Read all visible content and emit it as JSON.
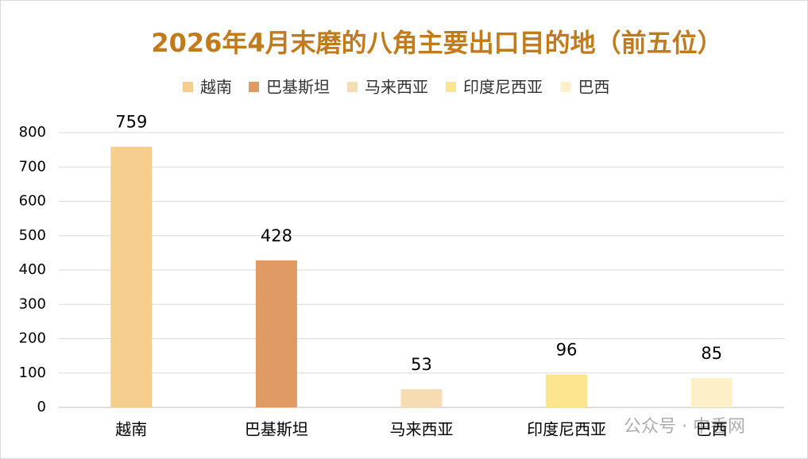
{
  "chart_data": {
    "type": "bar",
    "title": "2026年4月末磨的八角主要出口目的地（前五位）",
    "categories": [
      "越南",
      "巴基斯坦",
      "马来西亚",
      "印度尼西亚",
      "巴西"
    ],
    "values": [
      759,
      428,
      53,
      96,
      85
    ],
    "colors": [
      "#f5cd8d",
      "#e09a64",
      "#f5dcb3",
      "#fde48f",
      "#fdefc8"
    ],
    "ylim": [
      0,
      800
    ],
    "yticks": [
      0,
      100,
      200,
      300,
      400,
      500,
      600,
      700,
      800
    ],
    "grid": true,
    "legend": "top"
  },
  "watermark": "公众号 · 中香网"
}
